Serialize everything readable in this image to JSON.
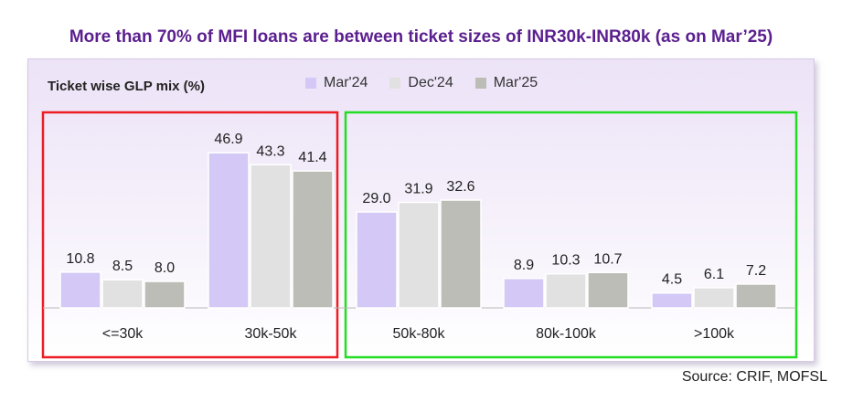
{
  "headline": "More than 70% of MFI loans are between ticket sizes of INR30k-INR80k (as on Mar’25)",
  "source": "Source: CRIF, MOFSL",
  "chart_data": {
    "type": "bar",
    "title": "Ticket wise GLP mix (%)",
    "xlabel": "",
    "ylabel": "",
    "categories": [
      "<=30k",
      "30k-50k",
      "50k-80k",
      "80k-100k",
      ">100k"
    ],
    "series": [
      {
        "name": "Mar'24",
        "values": [
          10.8,
          46.9,
          29.0,
          8.9,
          4.5
        ],
        "color": "#d4c8f7"
      },
      {
        "name": "Dec'24",
        "values": [
          8.5,
          43.3,
          31.9,
          10.3,
          6.1
        ],
        "color": "#e1e1e1"
      },
      {
        "name": "Mar'25",
        "values": [
          8.0,
          41.4,
          32.6,
          10.7,
          7.2
        ],
        "color": "#bdbdb8"
      }
    ],
    "ylim": [
      0,
      50
    ],
    "grid": false,
    "legend_position": "top",
    "highlight_boxes": [
      {
        "categories": [
          "<=30k",
          "30k-50k"
        ],
        "color": "#ee1c24"
      },
      {
        "categories": [
          "50k-80k",
          "80k-100k",
          ">100k"
        ],
        "color": "#22dd22"
      }
    ]
  }
}
